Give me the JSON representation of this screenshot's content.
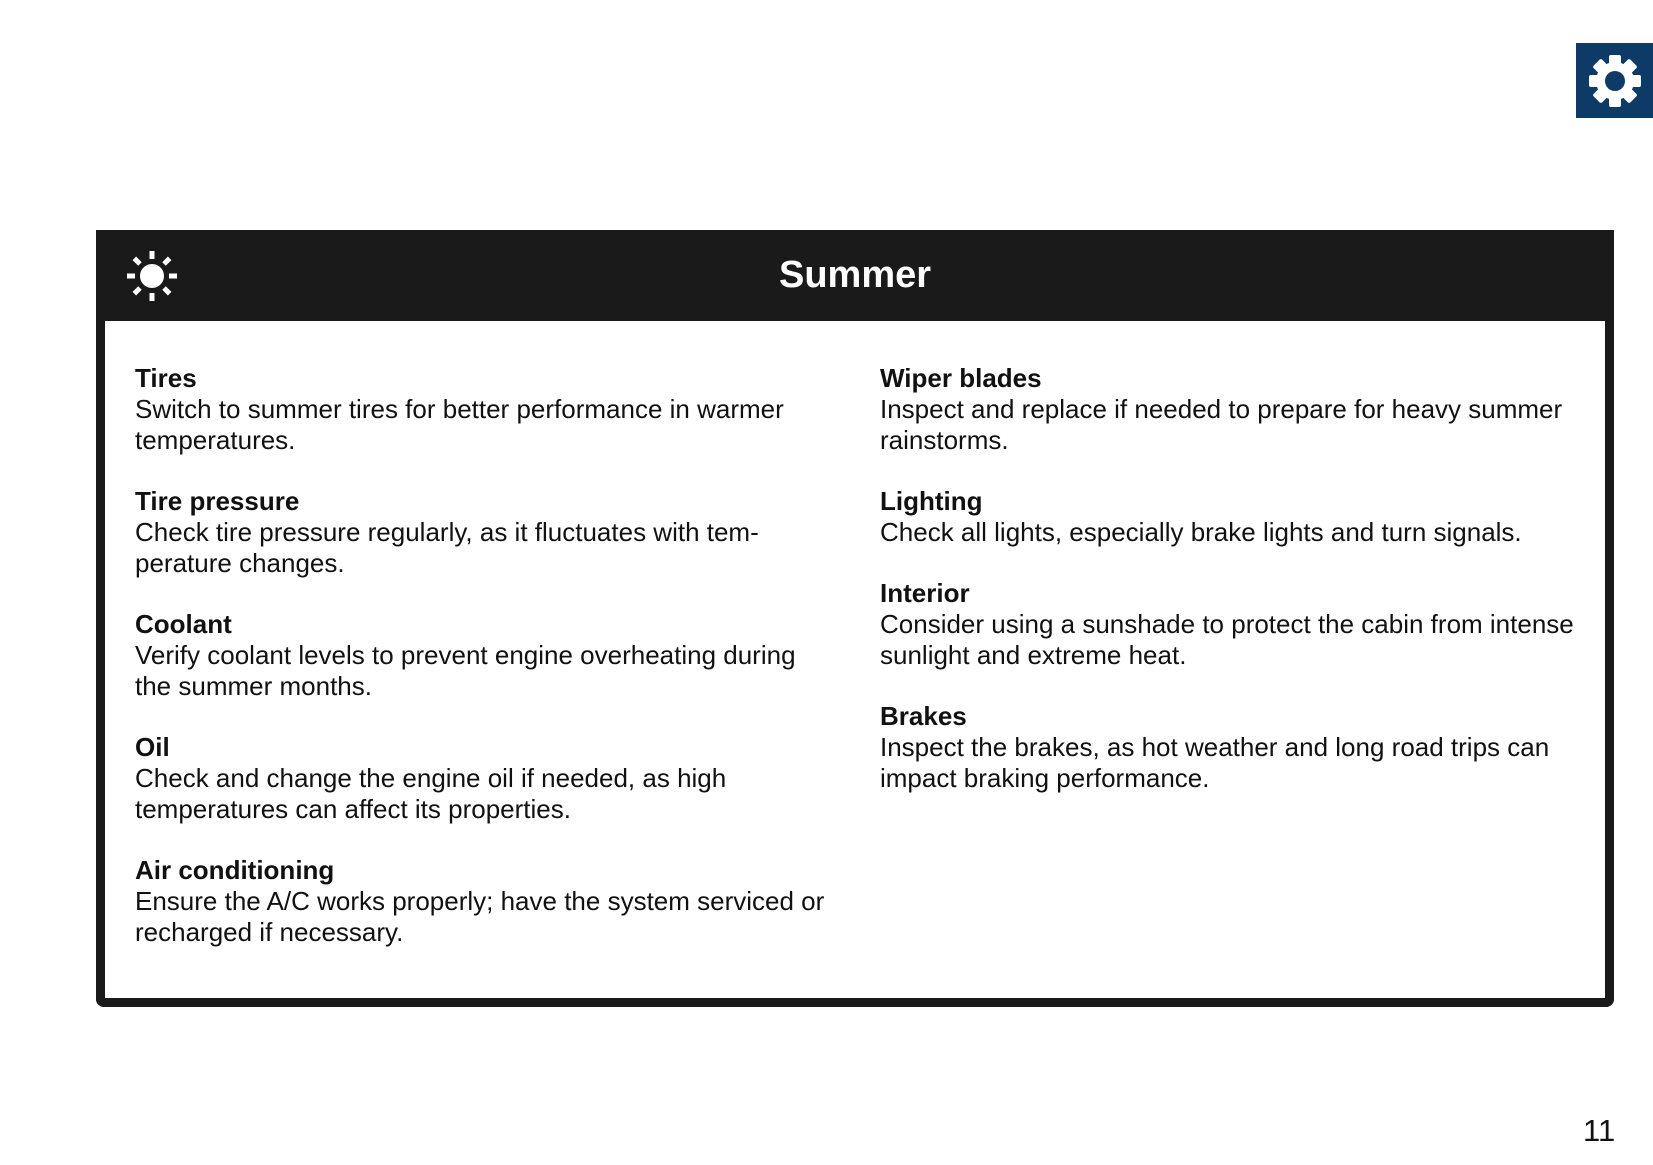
{
  "header_icon": "gear-icon",
  "colors": {
    "gear_bg": "#0d3a66",
    "header_bg": "#1b1a1b"
  },
  "section": {
    "icon": "sun-icon",
    "title": "Summer",
    "left": [
      {
        "heading": "Tires",
        "text": "Switch to summer tires for better performance in warm­er temperatures."
      },
      {
        "heading": "Tire pressure",
        "text": "Check tire pressure regularly, as it fluctuates with tem­perature changes."
      },
      {
        "heading": "Coolant",
        "text": "Verify coolant levels to prevent engine overheating during the summer months."
      },
      {
        "heading": "Oil",
        "text": "Check and change the engine oil if needed, as high temperatures can affect its properties."
      },
      {
        "heading": "Air conditioning",
        "text": "Ensure the A/C works properly; have the system ser­viced or recharged if necessary."
      }
    ],
    "right": [
      {
        "heading": "Wiper blades",
        "text": "Inspect and replace if needed to prepare for heavy summer rainstorms."
      },
      {
        "heading": "Lighting",
        "text": "Check all lights, especially brake lights and turn signals."
      },
      {
        "heading": "Interior",
        "text": "Consider using a sunshade to protect the cabin from intense sunlight and extreme heat."
      },
      {
        "heading": "Brakes",
        "text": "Inspect the brakes, as hot weather and long road trips can impact braking performance."
      }
    ]
  },
  "page_number": "11"
}
